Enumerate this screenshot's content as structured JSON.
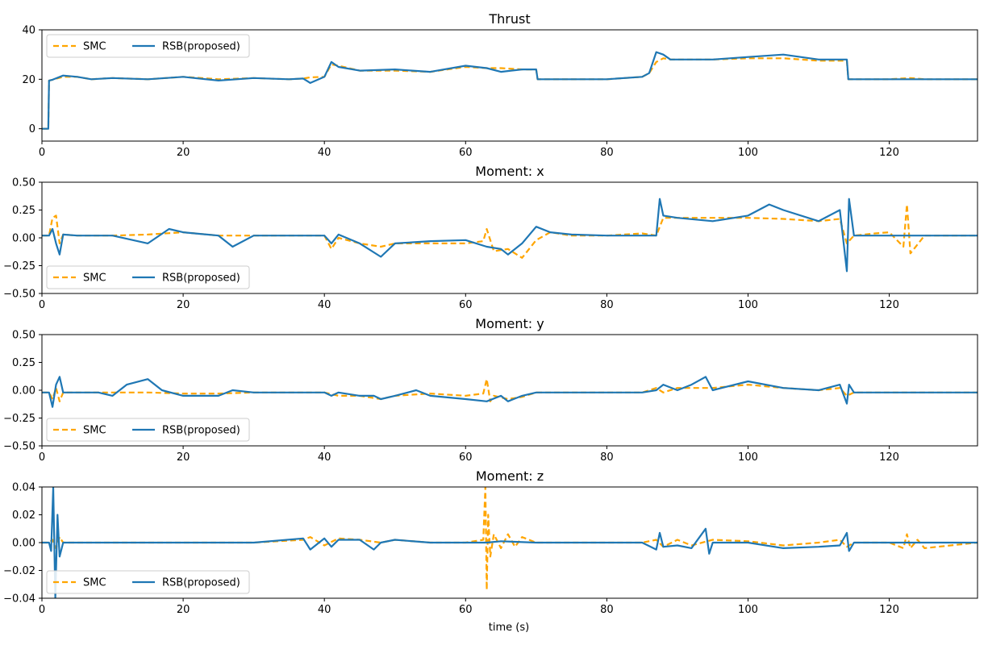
{
  "figure": {
    "xlabel": "time (s)",
    "colors": {
      "smc": "#ffa500",
      "rsb": "#1f77b4"
    }
  },
  "chart_data": [
    {
      "type": "line",
      "title": "Thrust",
      "xlabel": "",
      "ylabel": "",
      "xlim": [
        0,
        132.5
      ],
      "ylim": [
        -5,
        40
      ],
      "xticks": [
        0,
        20,
        40,
        60,
        80,
        100,
        120
      ],
      "yticks": [
        0,
        20,
        40
      ],
      "xtick_labels": [
        "0",
        "20",
        "40",
        "60",
        "80",
        "100",
        "120"
      ],
      "ytick_labels": [
        "0",
        "20",
        "40"
      ],
      "legend": {
        "position": "upper-left",
        "entries": [
          "SMC",
          "RSB(proposed)"
        ]
      },
      "grid": false,
      "series": [
        {
          "name": "SMC",
          "style": "dashed",
          "color": "#ffa500",
          "x": [
            0,
            0.9,
            1.0,
            1.5,
            3,
            5,
            7,
            10,
            15,
            20,
            25,
            30,
            35,
            37,
            38,
            40,
            41,
            42,
            45,
            50,
            55,
            60,
            63,
            65,
            68,
            70,
            70.2,
            72,
            75,
            80,
            85,
            86,
            87,
            88,
            89,
            90,
            95,
            100,
            105,
            110,
            113,
            114,
            114.2,
            115,
            120,
            123,
            125,
            132.5
          ],
          "y": [
            0,
            0,
            19.5,
            19.8,
            21,
            21,
            20,
            20.5,
            20,
            21,
            20,
            20.5,
            20,
            20.3,
            20.8,
            21,
            26,
            25.5,
            23.5,
            23.5,
            23,
            25,
            24.5,
            24.5,
            24,
            24,
            20,
            20,
            20,
            20,
            21,
            22.5,
            27,
            28.5,
            28,
            28,
            28,
            28.5,
            28.5,
            27.5,
            27.5,
            27.5,
            20,
            20,
            20,
            20.5,
            20,
            20
          ]
        },
        {
          "name": "RSB(proposed)",
          "style": "solid",
          "color": "#1f77b4",
          "x": [
            0,
            0.9,
            1.0,
            1.5,
            3,
            5,
            7,
            10,
            15,
            20,
            25,
            30,
            35,
            37,
            38,
            40,
            41,
            42,
            45,
            50,
            55,
            60,
            63,
            65,
            68,
            70,
            70.2,
            72,
            75,
            80,
            85,
            86,
            87,
            88,
            89,
            90,
            95,
            100,
            105,
            110,
            113,
            114,
            114.2,
            115,
            120,
            125,
            132.5
          ],
          "y": [
            0,
            0,
            19.5,
            19.8,
            21.5,
            21,
            20,
            20.5,
            20,
            21,
            19.5,
            20.5,
            20,
            20.3,
            18.5,
            21,
            27,
            25,
            23.5,
            24,
            23,
            25.5,
            24.5,
            23,
            24,
            24,
            20,
            20,
            20,
            20,
            21,
            22.5,
            31,
            30,
            28,
            28,
            28,
            29,
            30,
            28,
            28,
            28,
            20,
            20,
            20,
            20,
            20
          ]
        }
      ]
    },
    {
      "type": "line",
      "title": "Moment: x",
      "xlabel": "",
      "ylabel": "",
      "xlim": [
        0,
        132.5
      ],
      "ylim": [
        -0.5,
        0.5
      ],
      "xticks": [
        0,
        20,
        40,
        60,
        80,
        100,
        120
      ],
      "yticks": [
        -0.5,
        -0.25,
        0,
        0.25,
        0.5
      ],
      "xtick_labels": [
        "0",
        "20",
        "40",
        "60",
        "80",
        "100",
        "120"
      ],
      "ytick_labels": [
        "−0.50",
        "−0.25",
        "0.00",
        "0.25",
        "0.50"
      ],
      "legend": {
        "position": "lower-left",
        "entries": [
          "SMC",
          "RSB(proposed)"
        ]
      },
      "grid": false,
      "series": [
        {
          "name": "SMC",
          "style": "dashed",
          "color": "#ffa500",
          "x": [
            0,
            1,
            1.5,
            2,
            2.5,
            3,
            5,
            10,
            15,
            20,
            25,
            30,
            35,
            40,
            41,
            42,
            45,
            48,
            50,
            55,
            60,
            62.5,
            63,
            64,
            66,
            68,
            70,
            72,
            75,
            80,
            85,
            87,
            88,
            90,
            95,
            100,
            105,
            110,
            113,
            114,
            115,
            118,
            120,
            122,
            122.5,
            123,
            125,
            132.5
          ],
          "y": [
            0.02,
            0.02,
            0.18,
            0.2,
            -0.05,
            0.03,
            0.02,
            0.02,
            0.03,
            0.05,
            0.02,
            0.02,
            0.02,
            0.02,
            -0.1,
            0,
            -0.05,
            -0.08,
            -0.05,
            -0.05,
            -0.05,
            -0.03,
            0.08,
            -0.12,
            -0.1,
            -0.18,
            -0.02,
            0.05,
            0.02,
            0.02,
            0.04,
            0.02,
            0.18,
            0.18,
            0.18,
            0.18,
            0.17,
            0.15,
            0.17,
            -0.05,
            0.02,
            0.04,
            0.05,
            -0.08,
            0.3,
            -0.14,
            0.02,
            0.02
          ]
        },
        {
          "name": "RSB(proposed)",
          "style": "solid",
          "color": "#1f77b4",
          "x": [
            0,
            1,
            1.5,
            2,
            2.5,
            3,
            5,
            10,
            15,
            18,
            20,
            25,
            27,
            30,
            35,
            40,
            41,
            42,
            45,
            48,
            50,
            55,
            60,
            63,
            65,
            66,
            68,
            70,
            72,
            75,
            80,
            85,
            87,
            87.5,
            88,
            90,
            95,
            100,
            103,
            105,
            110,
            113,
            114,
            114.3,
            115,
            118,
            120,
            125,
            132.5
          ],
          "y": [
            0.02,
            0.02,
            0.08,
            -0.05,
            -0.15,
            0.03,
            0.02,
            0.02,
            -0.05,
            0.08,
            0.05,
            0.02,
            -0.08,
            0.02,
            0.02,
            0.02,
            -0.05,
            0.03,
            -0.05,
            -0.17,
            -0.05,
            -0.03,
            -0.02,
            -0.08,
            -0.1,
            -0.15,
            -0.05,
            0.1,
            0.05,
            0.03,
            0.02,
            0.02,
            0.02,
            0.35,
            0.2,
            0.18,
            0.15,
            0.2,
            0.3,
            0.25,
            0.15,
            0.25,
            -0.3,
            0.35,
            0.02,
            0.02,
            0.02,
            0.02,
            0.02
          ]
        }
      ]
    },
    {
      "type": "line",
      "title": "Moment: y",
      "xlabel": "",
      "ylabel": "",
      "xlim": [
        0,
        132.5
      ],
      "ylim": [
        -0.5,
        0.5
      ],
      "xticks": [
        0,
        20,
        40,
        60,
        80,
        100,
        120
      ],
      "yticks": [
        -0.5,
        -0.25,
        0,
        0.25,
        0.5
      ],
      "xtick_labels": [
        "0",
        "20",
        "40",
        "60",
        "80",
        "100",
        "120"
      ],
      "ytick_labels": [
        "−0.50",
        "−0.25",
        "0.00",
        "0.25",
        "0.50"
      ],
      "legend": {
        "position": "lower-left",
        "entries": [
          "SMC",
          "RSB(proposed)"
        ]
      },
      "grid": false,
      "series": [
        {
          "name": "SMC",
          "style": "dashed",
          "color": "#ffa500",
          "x": [
            0,
            1,
            1.5,
            2,
            2.5,
            3,
            5,
            10,
            15,
            20,
            25,
            30,
            35,
            40,
            42,
            45,
            48,
            50,
            55,
            60,
            62.5,
            63,
            63.5,
            64,
            66,
            68,
            70,
            72,
            75,
            80,
            85,
            87,
            88,
            90,
            95,
            100,
            105,
            110,
            113,
            114,
            115,
            120,
            125,
            132.5
          ],
          "y": [
            -0.02,
            -0.02,
            -0.08,
            0.02,
            -0.1,
            -0.02,
            -0.02,
            -0.02,
            -0.02,
            -0.03,
            -0.03,
            -0.02,
            -0.02,
            -0.02,
            -0.05,
            -0.05,
            -0.08,
            -0.05,
            -0.03,
            -0.05,
            -0.03,
            0.1,
            -0.1,
            -0.05,
            -0.08,
            -0.06,
            -0.02,
            -0.02,
            -0.02,
            -0.02,
            -0.02,
            0.02,
            -0.02,
            0.02,
            0.02,
            0.05,
            0.02,
            0.0,
            0.02,
            -0.05,
            -0.02,
            -0.02,
            -0.02,
            -0.02
          ]
        },
        {
          "name": "RSB(proposed)",
          "style": "solid",
          "color": "#1f77b4",
          "x": [
            0,
            1,
            1.5,
            2,
            2.5,
            3,
            5,
            8,
            10,
            12,
            15,
            17,
            20,
            25,
            27,
            30,
            35,
            40,
            41,
            42,
            45,
            47,
            48,
            50,
            53,
            55,
            60,
            63,
            65,
            66,
            68,
            70,
            72,
            75,
            80,
            85,
            87,
            88,
            90,
            92,
            94,
            95,
            100,
            105,
            110,
            113,
            114,
            114.3,
            115,
            120,
            125,
            132.5
          ],
          "y": [
            -0.02,
            -0.02,
            -0.15,
            0.05,
            0.12,
            -0.02,
            -0.02,
            -0.02,
            -0.05,
            0.05,
            0.1,
            0.0,
            -0.05,
            -0.05,
            0.0,
            -0.02,
            -0.02,
            -0.02,
            -0.05,
            -0.02,
            -0.05,
            -0.05,
            -0.08,
            -0.05,
            0.0,
            -0.05,
            -0.08,
            -0.1,
            -0.05,
            -0.1,
            -0.05,
            -0.02,
            -0.02,
            -0.02,
            -0.02,
            -0.02,
            0.0,
            0.05,
            0.0,
            0.05,
            0.12,
            0.0,
            0.08,
            0.02,
            0.0,
            0.05,
            -0.12,
            0.05,
            -0.02,
            -0.02,
            -0.02,
            -0.02
          ]
        }
      ]
    },
    {
      "type": "line",
      "title": "Moment: z",
      "xlabel": "time (s)",
      "ylabel": "",
      "xlim": [
        0,
        132.5
      ],
      "ylim": [
        -0.04,
        0.04
      ],
      "xticks": [
        0,
        20,
        40,
        60,
        80,
        100,
        120
      ],
      "yticks": [
        -0.04,
        -0.02,
        0,
        0.02,
        0.04
      ],
      "xtick_labels": [
        "0",
        "20",
        "40",
        "60",
        "80",
        "100",
        "120"
      ],
      "ytick_labels": [
        "−0.04",
        "−0.02",
        "0.00",
        "0.02",
        "0.04"
      ],
      "legend": {
        "position": "lower-left",
        "entries": [
          "SMC",
          "RSB(proposed)"
        ]
      },
      "grid": false,
      "series": [
        {
          "name": "SMC",
          "style": "dashed",
          "color": "#ffa500",
          "x": [
            0,
            1,
            1.5,
            2,
            2.5,
            3,
            5,
            10,
            20,
            30,
            37,
            38,
            40,
            42,
            45,
            48,
            50,
            55,
            60,
            62.5,
            62.8,
            63,
            63.2,
            63.5,
            64,
            65,
            66,
            67,
            68,
            70,
            80,
            85,
            87,
            88,
            90,
            92,
            95,
            100,
            105,
            110,
            113,
            114,
            115,
            120,
            122,
            122.5,
            123,
            124,
            125,
            132.5
          ],
          "y": [
            0,
            0,
            0.002,
            -0.004,
            0.004,
            0,
            0,
            0,
            0,
            0,
            0.002,
            0.004,
            -0.002,
            0.003,
            0.002,
            0,
            0.002,
            0,
            0,
            0.002,
            0.04,
            -0.034,
            0.02,
            -0.01,
            0.006,
            -0.004,
            0.006,
            -0.003,
            0.004,
            0,
            0,
            0,
            0.002,
            -0.003,
            0.002,
            -0.002,
            0.002,
            0.001,
            -0.002,
            0,
            0.002,
            -0.003,
            0,
            0,
            -0.004,
            0.006,
            -0.004,
            0.002,
            -0.004,
            0
          ]
        },
        {
          "name": "RSB(proposed)",
          "style": "solid",
          "color": "#1f77b4",
          "x": [
            0,
            1,
            1.3,
            1.6,
            1.9,
            2.2,
            2.5,
            3,
            5,
            10,
            20,
            30,
            37,
            38,
            40,
            41,
            42,
            45,
            47,
            48,
            50,
            55,
            60,
            63,
            65,
            70,
            80,
            85,
            87,
            87.5,
            88,
            90,
            92,
            94,
            94.5,
            95,
            100,
            105,
            110,
            113,
            114,
            114.3,
            115,
            120,
            125,
            132.5
          ],
          "y": [
            0,
            0,
            -0.006,
            0.04,
            -0.04,
            0.02,
            -0.01,
            0,
            0,
            0,
            0,
            0,
            0.003,
            -0.005,
            0.003,
            -0.003,
            0.002,
            0.002,
            -0.005,
            0,
            0.002,
            0,
            0,
            0,
            0.001,
            0,
            0,
            0,
            -0.005,
            0.007,
            -0.003,
            -0.002,
            -0.004,
            0.01,
            -0.008,
            0,
            0,
            -0.004,
            -0.003,
            -0.002,
            0.007,
            -0.006,
            0,
            0,
            0,
            0
          ]
        }
      ]
    }
  ]
}
